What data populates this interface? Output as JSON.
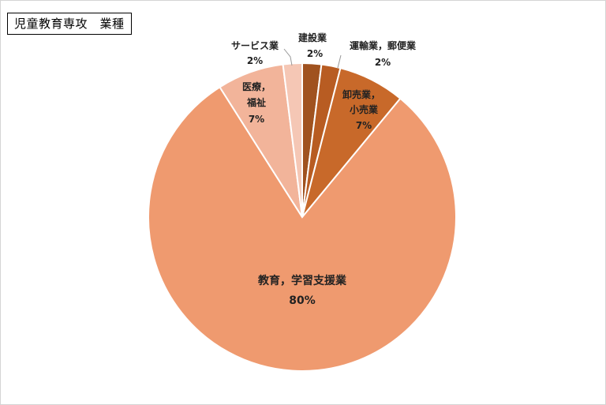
{
  "chart_data": {
    "type": "pie",
    "title": "児童教育専攻　業種",
    "colors": [
      "#a0521f",
      "#b85c22",
      "#c8692a",
      "#ef9a6f",
      "#f2b49a",
      "#f5c7b5"
    ],
    "slices": [
      {
        "label": "建設業",
        "value": 2,
        "label_text": "2%"
      },
      {
        "label": "運輸業，郵便業",
        "value": 2,
        "label_text": "2%"
      },
      {
        "label": "卸売業，小売業",
        "value": 7,
        "label_text": "7%"
      },
      {
        "label": "教育，学習支援業",
        "value": 80,
        "label_text": "80%"
      },
      {
        "label": "医療，福祉",
        "value": 7,
        "label_text": "7%"
      },
      {
        "label": "サービス業",
        "value": 2,
        "label_text": "2%"
      }
    ]
  }
}
